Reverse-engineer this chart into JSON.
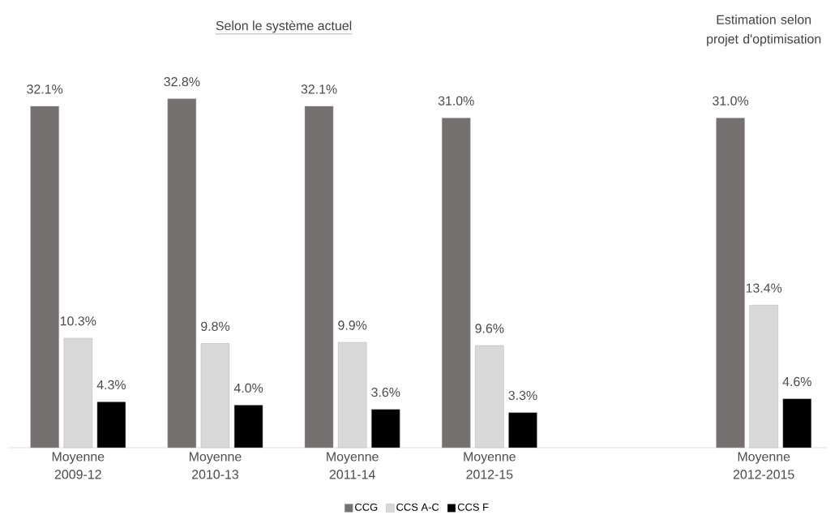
{
  "chart_data": {
    "type": "bar",
    "title": "Selon le système actuel",
    "annotations": [
      "Estimation selon projet d'optimisation"
    ],
    "categories": [
      "Moyenne 2009-12",
      "Moyenne 2010-13",
      "Moyenne 2011-14",
      "Moyenne 2012-15",
      null,
      "Moyenne 2012-2015"
    ],
    "series": [
      {
        "name": "CCG",
        "color": "#767171",
        "values": [
          32.1,
          32.8,
          32.1,
          31.0,
          null,
          31.0
        ],
        "value_labels": [
          "32.1%",
          "32.8%",
          "32.1%",
          "31.0%",
          null,
          "31.0%"
        ]
      },
      {
        "name": "CCS A-C",
        "color": "#d9d9d9",
        "values": [
          10.3,
          9.8,
          9.9,
          9.6,
          null,
          13.4
        ],
        "value_labels": [
          "10.3%",
          "9.8%",
          "9.9%",
          "9.6%",
          null,
          "13.4%"
        ]
      },
      {
        "name": "CCS F",
        "color": "#000000",
        "values": [
          4.3,
          4.0,
          3.6,
          3.3,
          null,
          4.6
        ],
        "value_labels": [
          "4.3%",
          "4.0%",
          "3.6%",
          "3.3%",
          null,
          "4.6%"
        ]
      }
    ],
    "legend": "bottom"
  }
}
